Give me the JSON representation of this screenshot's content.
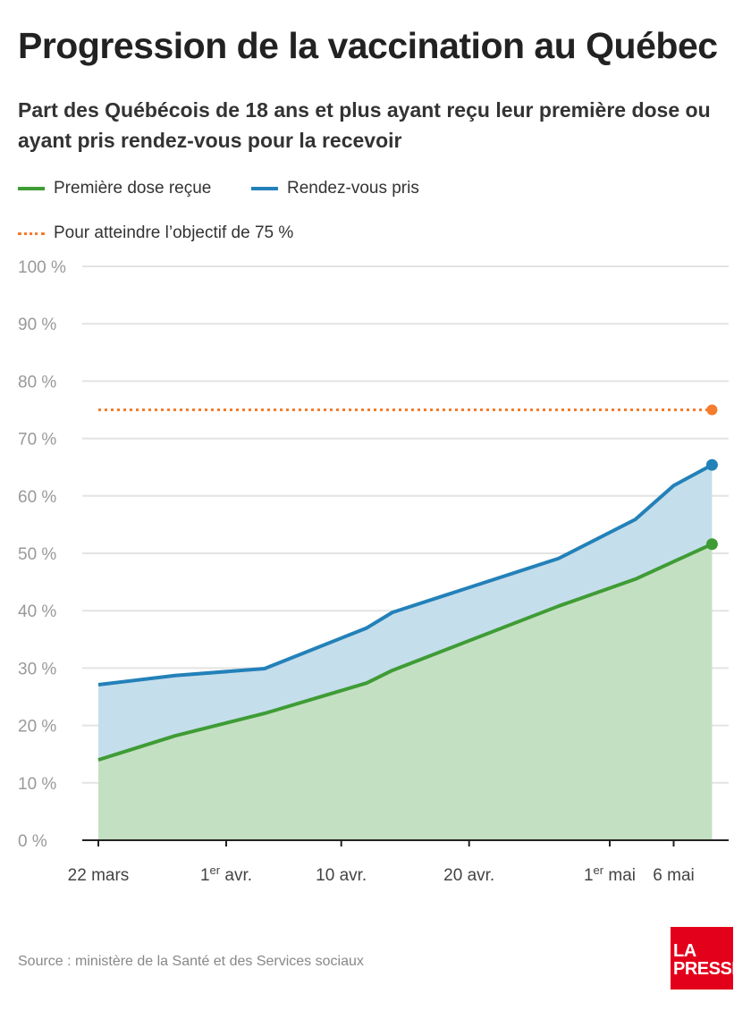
{
  "chart_data": {
    "type": "area",
    "title": "Progression de la vaccination au Québec",
    "subtitle": "Part des Québécois de 18 ans et plus ayant reçu leur première dose ou ayant pris rendez-vous pour la recevoir",
    "x_unit": "days since 22 mars",
    "ylim": [
      0,
      100
    ],
    "yticks": [
      0,
      10,
      20,
      30,
      40,
      50,
      60,
      70,
      80,
      90,
      100
    ],
    "ytick_suffix": " %",
    "xticks": [
      {
        "day": 0,
        "pre": "22 mars",
        "sup": "",
        "post": ""
      },
      {
        "day": 10,
        "pre": "1",
        "sup": "er",
        "post": " avr."
      },
      {
        "day": 19,
        "pre": "10 avr.",
        "sup": "",
        "post": ""
      },
      {
        "day": 29,
        "pre": "20 avr.",
        "sup": "",
        "post": ""
      },
      {
        "day": 40,
        "pre": "1",
        "sup": "er",
        "post": " mai"
      },
      {
        "day": 45,
        "pre": "6 mai",
        "sup": "",
        "post": ""
      }
    ],
    "xlim": [
      0,
      48
    ],
    "grid": true,
    "legend_position": "top",
    "series": [
      {
        "name": "Rendez-vous pris",
        "color": "#2381b9",
        "fill": "#c5deec",
        "points": [
          [
            0,
            27.1
          ],
          [
            6,
            28.7
          ],
          [
            13,
            29.9
          ],
          [
            21,
            37.0
          ],
          [
            23,
            39.7
          ],
          [
            36,
            49.1
          ],
          [
            42,
            55.9
          ],
          [
            45,
            61.8
          ],
          [
            48,
            65.4
          ]
        ]
      },
      {
        "name": "Première dose reçue",
        "color": "#3f9c35",
        "fill": "#c4e0c2",
        "points": [
          [
            0,
            14.0
          ],
          [
            6,
            18.2
          ],
          [
            13,
            22.1
          ],
          [
            21,
            27.4
          ],
          [
            23,
            29.6
          ],
          [
            36,
            40.8
          ],
          [
            42,
            45.5
          ],
          [
            48,
            51.6
          ]
        ]
      }
    ],
    "target": {
      "name": "Pour atteindre l’objectif de 75 %",
      "value": 75,
      "color": "#f47c2c"
    }
  },
  "legend": {
    "green": "Première dose reçue",
    "blue": "Rendez-vous pris",
    "orange": "Pour atteindre l’objectif de 75 %"
  },
  "source": "Source : ministère de la Santé et des Services sociaux",
  "logo": {
    "line1": "LA",
    "line2": "PRESSE"
  }
}
